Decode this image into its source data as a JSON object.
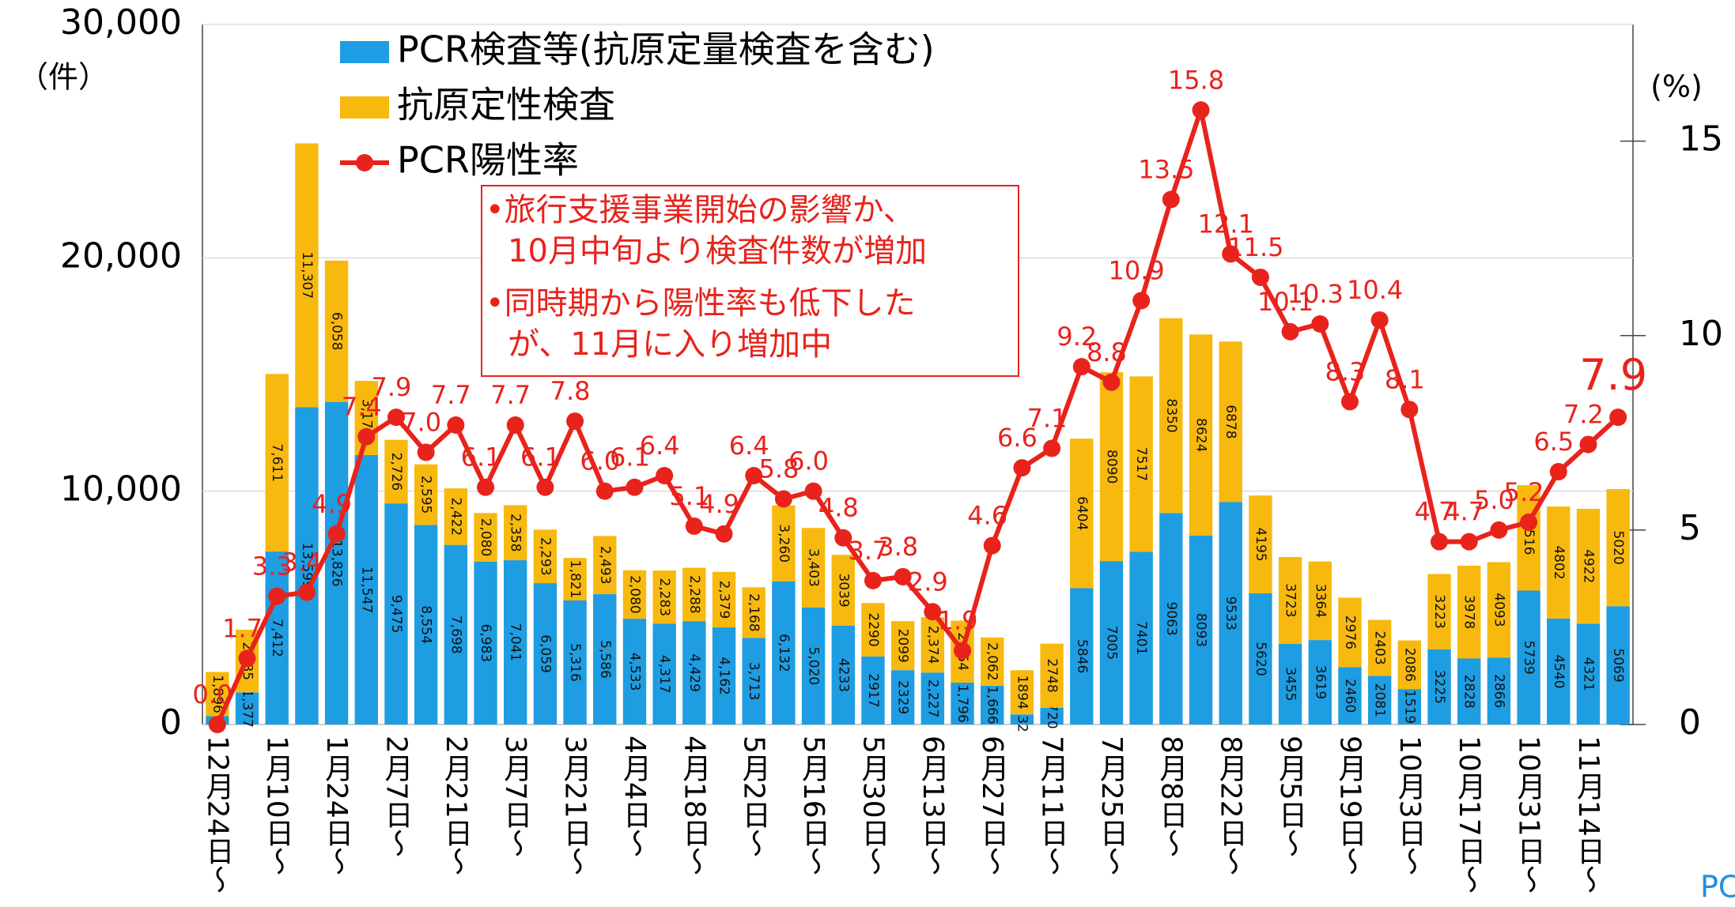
{
  "chart_data": {
    "type": "bar",
    "y_label": "（件）",
    "y2_label": "(%)",
    "footer": "PC",
    "annotations": [
      [
        "•旅行支援事業開始の影響か、",
        "10月中旬より検査件数が増加"
      ],
      [
        "•同時期から陽性率も低下した",
        "が、11月に入り増加中"
      ]
    ],
    "categories": [
      "12月24日～",
      null,
      "1月10日～",
      null,
      "1月24日～",
      null,
      "2月7日～",
      null,
      "2月21日～",
      null,
      "3月7日～",
      null,
      "3月21日～",
      null,
      "4月4日～",
      null,
      "4月18日～",
      null,
      "5月2日～",
      null,
      "5月16日～",
      null,
      "5月30日～",
      null,
      "6月13日～",
      null,
      "6月27日～",
      null,
      "7月11日～",
      null,
      "7月25日～",
      null,
      "8月8日～",
      null,
      "8月22日～",
      null,
      "9月5日～",
      null,
      "9月19日～",
      null,
      "10月3日～",
      null,
      "10月17日～",
      null,
      "10月31日～",
      null,
      "11月14日～",
      null
    ],
    "ylim": [
      0,
      30000
    ],
    "yticks": [
      0,
      {
        "value": 10000,
        "label": "10,000"
      },
      {
        "value": 20000,
        "label": "20,000"
      },
      {
        "value": 30000,
        "label": "30,000"
      }
    ],
    "y2lim": [
      0,
      18
    ],
    "y2ticks": [
      0,
      5,
      10,
      15
    ],
    "series": [
      {
        "name": "PCR検査等(抗原定量検査を含む)",
        "color": "#1e9de2",
        "stack": true,
        "values": [
          355,
          1377,
          7412,
          13599,
          13826,
          11547,
          9475,
          8554,
          7698,
          6983,
          7041,
          6059,
          5316,
          5586,
          4533,
          4317,
          4429,
          4162,
          3713,
          6132,
          5020,
          4233,
          2917,
          2329,
          2227,
          1796,
          1666,
          432,
          720,
          5846,
          7005,
          7401,
          9063,
          8093,
          9533,
          5620,
          3455,
          3619,
          2460,
          2081,
          1519,
          3225,
          2828,
          2866,
          5739,
          4540,
          4321,
          5069
        ],
        "value_labels": [
          "355",
          "1,377",
          "7,412",
          "13,599",
          "13,826",
          "11,547",
          "9,475",
          "8,554",
          "7,698",
          "6,983",
          "7,041",
          "6,059",
          "5,316",
          "5,586",
          "4,533",
          "4,317",
          "4,429",
          "4,162",
          "3,713",
          "6,132",
          "5,020",
          "4233",
          "2917",
          "2329",
          "2,227",
          "1,796",
          "1,666",
          "432",
          "720",
          "5846",
          "7005",
          "7401",
          "9063",
          "8093",
          "9533",
          "5620",
          "3455",
          "3619",
          "2460",
          "2081",
          "1519",
          "3225",
          "2828",
          "2866",
          "5739",
          "4540",
          "4321",
          "5069"
        ]
      },
      {
        "name": "抗原定性検査",
        "color": "#f8b90f",
        "stack": true,
        "values": [
          1896,
          2685,
          7611,
          11307,
          6058,
          3179,
          2726,
          2595,
          2422,
          2080,
          2358,
          2293,
          1821,
          2493,
          2080,
          2283,
          2288,
          2379,
          2168,
          3260,
          3403,
          3039,
          2290,
          2099,
          2374,
          2654,
          2062,
          1894,
          2748,
          6404,
          8090,
          7517,
          8350,
          8624,
          6878,
          4195,
          3723,
          3364,
          2976,
          2403,
          2086,
          3223,
          3978,
          4093,
          4516,
          4802,
          4922,
          5020
        ],
        "value_labels": [
          "1,896",
          "2,685",
          "7,611",
          "11,307",
          "6,058",
          "3,179",
          "2,726",
          "2,595",
          "2,422",
          "2,080",
          "2,358",
          "2,293",
          "1,821",
          "2,493",
          "2,080",
          "2,283",
          "2,288",
          "2,379",
          "2,168",
          "3,260",
          "3,403",
          "3039",
          "2290",
          "2099",
          "2,374",
          "2,654",
          "2,062",
          "1894",
          "2748",
          "6404",
          "8090",
          "7517",
          "8350",
          "8624",
          "6878",
          "4195",
          "3723",
          "3364",
          "2976",
          "2403",
          "2086",
          "3223",
          "3978",
          "4093",
          "4516",
          "4802",
          "4922",
          "5020"
        ]
      },
      {
        "name": "PCR陽性率",
        "color": "#e8231c",
        "type": "line",
        "axis": "y2",
        "values": [
          0.0,
          1.7,
          3.3,
          3.4,
          4.9,
          7.4,
          7.9,
          7.0,
          7.7,
          6.1,
          7.7,
          6.1,
          7.8,
          6.0,
          6.1,
          6.4,
          5.1,
          4.9,
          6.4,
          5.8,
          6.0,
          4.8,
          3.7,
          3.8,
          2.9,
          1.9,
          4.6,
          6.6,
          7.1,
          9.2,
          8.8,
          10.9,
          13.5,
          15.8,
          12.1,
          11.5,
          10.1,
          10.3,
          8.3,
          10.4,
          8.1,
          4.7,
          4.7,
          5.0,
          5.2,
          6.5,
          7.2,
          7.9
        ],
        "value_labels": [
          "0.0",
          "1.7",
          "3.3",
          "3.4",
          "4.9",
          "7.4",
          "7.9",
          "7.0",
          "7.7",
          "6.1",
          "7.7",
          "6.1",
          "7.8",
          "6.0",
          "6.1",
          "6.4",
          "5.1",
          "4.9",
          "6.4",
          "5.8",
          "6.0",
          "4.8",
          "3.7",
          "3.8",
          "2.9",
          "1.9",
          "4.6",
          "6.6",
          "7.1",
          "9.2",
          "8.8",
          "10.9",
          "13.5",
          "15.8",
          "12.1",
          "11.5",
          "10.1",
          "10.3",
          "8.3",
          "10.4",
          "8.1",
          "4.7",
          "4.7",
          "5.0",
          "5.2",
          "6.5",
          "7.2",
          "7.9"
        ]
      }
    ]
  }
}
